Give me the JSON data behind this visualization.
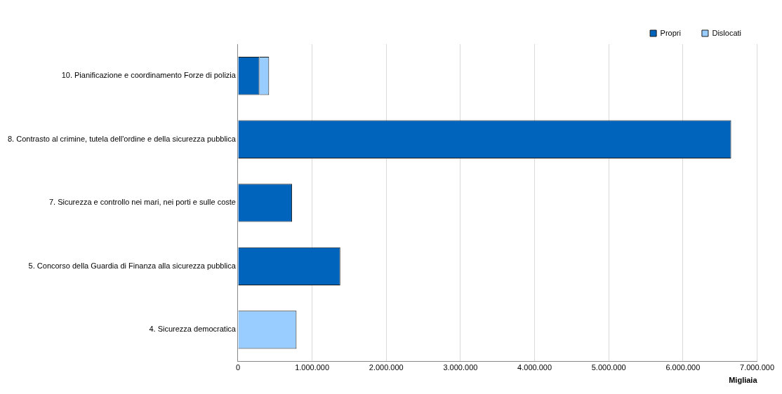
{
  "chart_data": {
    "type": "bar",
    "orientation": "horizontal",
    "stacked": true,
    "xlabel": "Migliaia",
    "categories": [
      "10. Pianificazione e coordinamento Forze di polizia",
      "8. Contrasto al crimine, tutela dell'ordine e della sicurezza pubblica",
      "7. Sicurezza e controllo nei mari, nei porti e sulle coste",
      "5. Concorso della Guardia di Finanza alla sicurezza pubblica",
      "4. Sicurezza democratica"
    ],
    "series": [
      {
        "name": "Propri",
        "color": "#0063bc",
        "values": [
          290000,
          6650000,
          730000,
          1380000,
          null
        ]
      },
      {
        "name": "Dislocati",
        "color": "#99ccff",
        "values": [
          130000,
          null,
          null,
          null,
          790000
        ]
      }
    ],
    "xlim": [
      0,
      7000000
    ],
    "xticks": [
      {
        "value": 0,
        "label": "0"
      },
      {
        "value": 1000000,
        "label": "1.000.000"
      },
      {
        "value": 2000000,
        "label": "2.000.000"
      },
      {
        "value": 3000000,
        "label": "3.000.000"
      },
      {
        "value": 4000000,
        "label": "4.000.000"
      },
      {
        "value": 5000000,
        "label": "5.000.000"
      },
      {
        "value": 6000000,
        "label": "6.000.000"
      },
      {
        "value": 7000000,
        "label": "7.000.000"
      }
    ],
    "grid": "x",
    "legend": "top right"
  }
}
